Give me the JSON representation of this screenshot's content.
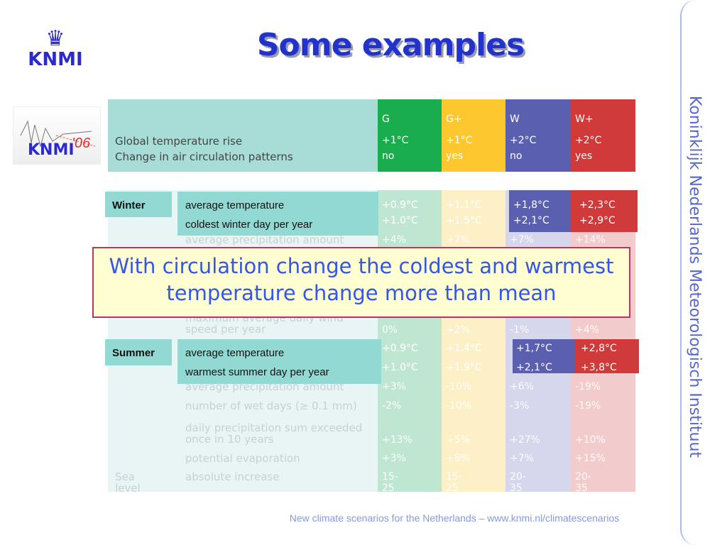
{
  "title": "Some examples",
  "logo": {
    "text": "KNMI",
    "icon": "crown-icon"
  },
  "scenario_logo": {
    "text": "KNMI",
    "year": "'06"
  },
  "side_text": "Koninklijk Nederlands Meteorologisch Instituut",
  "footer": "New climate scenarios for the Netherlands – www.knmi.nl/climatescenarios",
  "colors": {
    "G": "#1aad4e",
    "G+": "#fdc82f",
    "W": "#5a5fb0",
    "W+": "#d03a3a",
    "accent": "#2233cc"
  },
  "header": {
    "row1": "Global temperature rise",
    "row2": "Change in air circulation patterns",
    "columns": [
      {
        "name": "G",
        "temp": "+1°C",
        "circ": "no"
      },
      {
        "name": "G+",
        "temp": "+1°C",
        "circ": "yes"
      },
      {
        "name": "W",
        "temp": "+2°C",
        "circ": "no"
      },
      {
        "name": "W+",
        "temp": "+2°C",
        "circ": "yes"
      }
    ]
  },
  "rows": [
    {
      "group": "",
      "label": "average precipitation amount",
      "values": [
        "+4%",
        "+7%",
        "+7%",
        "+14%"
      ]
    },
    {
      "group": "",
      "label": "maximum average daily wind speed per year",
      "values": [
        "0%",
        "+2%",
        "-1%",
        "+4%"
      ]
    },
    {
      "group": "",
      "label": "average precipitation amount",
      "values": [
        "+3%",
        "-10%",
        "+6%",
        "-19%"
      ]
    },
    {
      "group": "",
      "label": "number of wet days (≥ 0.1 mm)",
      "values": [
        "-2%",
        "-10%",
        "-3%",
        "-19%"
      ]
    },
    {
      "group": "",
      "label": "daily precipitation sum exceeded once in 10 years",
      "values": [
        "+13%",
        "+5%",
        "+27%",
        "+10%"
      ]
    },
    {
      "group": "",
      "label": "potential evaporation",
      "values": [
        "+3%",
        "+8%",
        "+7%",
        "+15%"
      ]
    },
    {
      "group": "Sea level",
      "label": "absolute increase",
      "values": [
        "15-25 cm",
        "15-25 cm",
        "20-35 cm",
        "20-35 cm"
      ]
    }
  ],
  "winter": {
    "label": "Winter",
    "rows": [
      {
        "label": "average temperature",
        "values": [
          "+0.9°C",
          "+1.1°C",
          "+1,8°C",
          "+2,3°C"
        ]
      },
      {
        "label": "coldest winter day per year",
        "values": [
          "+1.0°C",
          "+1.5°C",
          "+2,1°C",
          "+2,9°C"
        ]
      }
    ]
  },
  "summer": {
    "label": "Summer",
    "rows": [
      {
        "label": "average temperature",
        "values": [
          "+0.9°C",
          "+1.4°C",
          "+1,7°C",
          "+2,8°C"
        ]
      },
      {
        "label": "warmest summer day per year",
        "values": [
          "+1.0°C",
          "+1.9°C",
          "+2,1°C",
          "+3,8°C"
        ]
      }
    ]
  },
  "callout": "With circulation change the coldest and warmest temperature change more than mean"
}
